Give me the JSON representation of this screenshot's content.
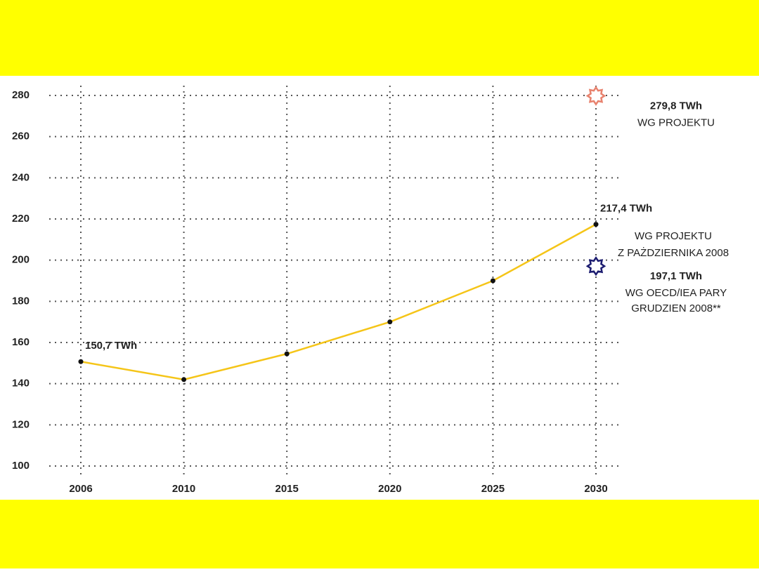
{
  "chart_data": {
    "type": "line",
    "categories": [
      "2006",
      "2010",
      "2015",
      "2020",
      "2025",
      "2030"
    ],
    "values": [
      150.7,
      142,
      154.5,
      170,
      190,
      217.4
    ],
    "value_labels": [
      "150,7 TWh",
      null,
      null,
      null,
      null,
      "217,4 TWh"
    ],
    "color": "#f5c518",
    "line_note": [
      "WG PROJEKTU",
      "Z PAŻDZIERNIKA 2008"
    ],
    "ylim": [
      100,
      280
    ],
    "yticks": [
      100,
      120,
      140,
      160,
      180,
      200,
      220,
      240,
      260,
      280
    ],
    "grid": true,
    "annotations": [
      {
        "value": 279.8,
        "value_label": "279,8 TWh",
        "text": [
          "WG PROJEKTU"
        ],
        "color": "#e8826e"
      },
      {
        "value": 197.1,
        "value_label": "197,1 TWh",
        "text": [
          "WG OECD/IEA PARY",
          "GRUDZIEN 2008**"
        ],
        "color": "#1c1c70"
      }
    ]
  }
}
